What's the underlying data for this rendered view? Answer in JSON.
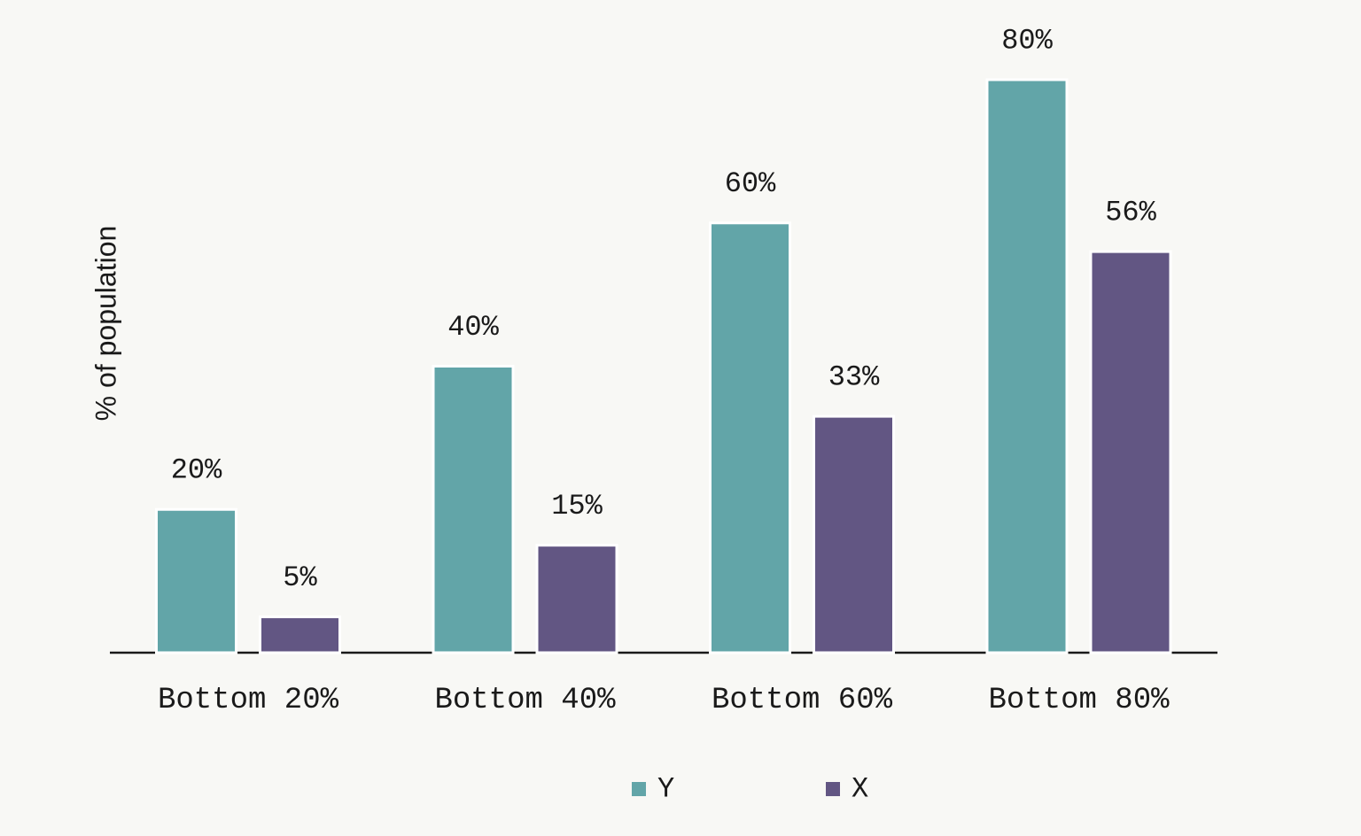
{
  "chart_data": {
    "type": "bar",
    "y_axis_label": "% of population",
    "categories": [
      "Bottom 20%",
      "Bottom 40%",
      "Bottom 60%",
      "Bottom 80%"
    ],
    "series": [
      {
        "name": "Y",
        "color": "#62a5a8",
        "values": [
          20,
          40,
          60,
          80
        ],
        "value_labels": [
          "20%",
          "40%",
          "60%",
          "80%"
        ]
      },
      {
        "name": "X",
        "color": "#625683",
        "values": [
          5,
          15,
          33,
          56
        ],
        "value_labels": [
          "5%",
          "15%",
          "33%",
          "56%"
        ]
      }
    ],
    "ylim": [
      0,
      80
    ],
    "legend": "bottom"
  }
}
